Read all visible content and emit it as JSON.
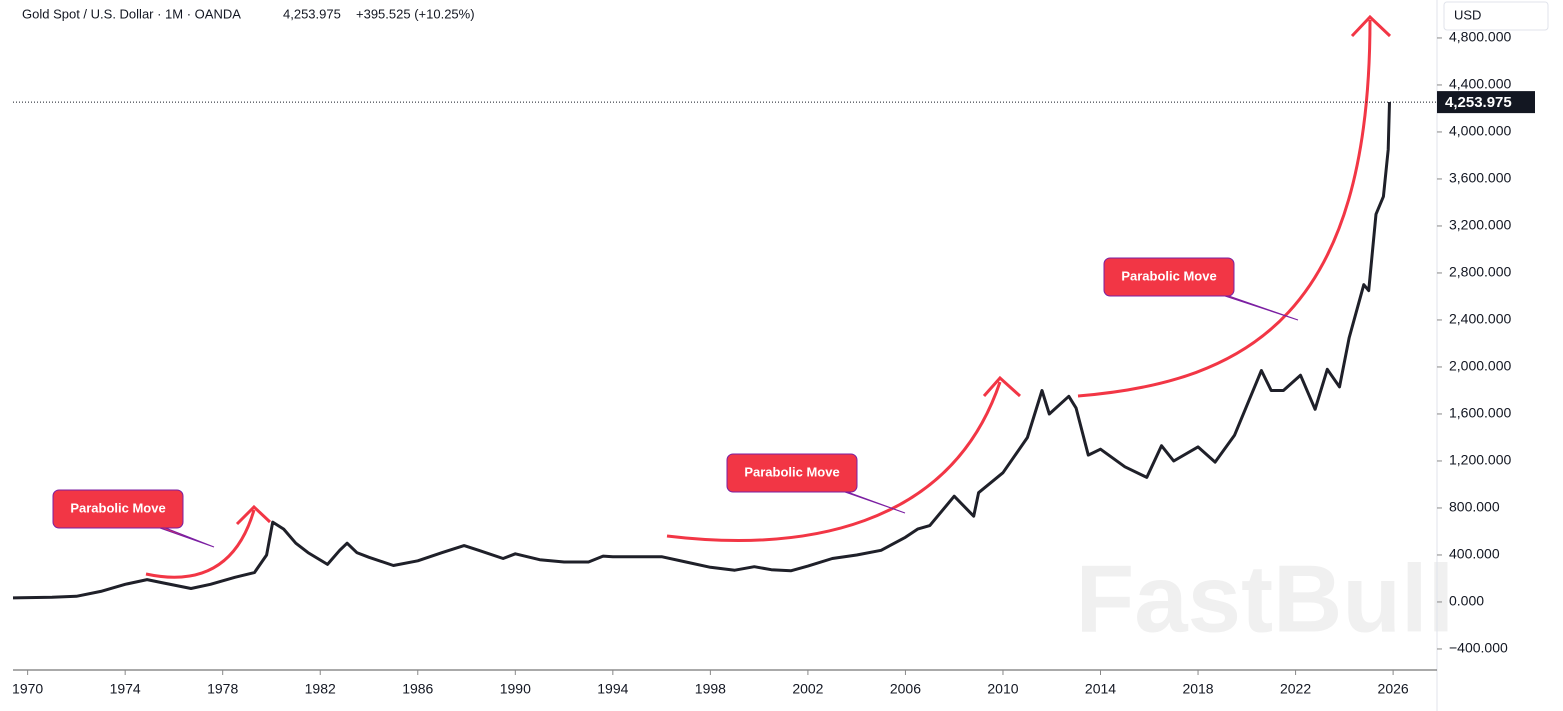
{
  "chart_data": {
    "type": "line",
    "title": "Gold Spot / U.S. Dollar · 1M · OANDA",
    "last_price": {
      "value": 4253.975,
      "label": "4,253.975"
    },
    "change": "+395.525 (+10.25%)",
    "currency": "USD",
    "watermark": "FastBull",
    "annotations": [
      "Parabolic Move",
      "Parabolic Move",
      "Parabolic Move"
    ],
    "xlim": [
      1969.4,
      2027.8
    ],
    "xticks": [
      1970,
      1974,
      1978,
      1982,
      1986,
      1990,
      1994,
      1998,
      2002,
      2006,
      2010,
      2014,
      2018,
      2022,
      2026
    ],
    "ylim": [
      -579,
      5123
    ],
    "yticks": [
      {
        "value": -400,
        "label": "−400.000"
      },
      {
        "value": 0,
        "label": "0.000"
      },
      {
        "value": 400,
        "label": "400.000"
      },
      {
        "value": 800,
        "label": "800.000"
      },
      {
        "value": 1200,
        "label": "1,200.000"
      },
      {
        "value": 1600,
        "label": "1,600.000"
      },
      {
        "value": 2000,
        "label": "2,000.000"
      },
      {
        "value": 2400,
        "label": "2,400.000"
      },
      {
        "value": 2800,
        "label": "2,800.000"
      },
      {
        "value": 3200,
        "label": "3,200.000"
      },
      {
        "value": 3600,
        "label": "3,600.000"
      },
      {
        "value": 4000,
        "label": "4,000.000"
      },
      {
        "value": 4400,
        "label": "4,400.000"
      },
      {
        "value": 4800,
        "label": "4,800.000"
      }
    ],
    "series": [
      {
        "color": "#1f2029",
        "x": [
          1969.4,
          1971,
          1972,
          1973,
          1974,
          1974.9,
          1975.5,
          1976.7,
          1977.5,
          1978.5,
          1979.3,
          1979.8,
          1980.05,
          1980.5,
          1981,
          1981.5,
          1982.3,
          1982.8,
          1983.1,
          1983.5,
          1984,
          1985,
          1986,
          1987,
          1987.9,
          1988.5,
          1989.5,
          1990,
          1991,
          1992,
          1993,
          1993.6,
          1994,
          1995,
          1996,
          1997,
          1998,
          1999,
          1999.8,
          2000.5,
          2001.3,
          2002,
          2003,
          2004,
          2005,
          2006,
          2006.5,
          2007,
          2008,
          2008.8,
          2009,
          2010,
          2011,
          2011.6,
          2011.9,
          2012.7,
          2013,
          2013.5,
          2014,
          2015,
          2015.9,
          2016.5,
          2017,
          2018,
          2018.7,
          2019.5,
          2020.6,
          2021,
          2021.5,
          2022.2,
          2022.8,
          2023.3,
          2023.8,
          2024.2,
          2024.8,
          2025,
          2025.3,
          2025.6,
          2025.8,
          2025.85
        ],
        "values": [
          35,
          40,
          48,
          90,
          150,
          190,
          165,
          115,
          150,
          210,
          250,
          400,
          680,
          620,
          500,
          420,
          320,
          440,
          500,
          420,
          380,
          310,
          350,
          420,
          480,
          440,
          370,
          410,
          360,
          340,
          340,
          390,
          385,
          385,
          385,
          340,
          295,
          270,
          300,
          275,
          265,
          305,
          370,
          400,
          440,
          550,
          620,
          650,
          900,
          730,
          930,
          1100,
          1400,
          1800,
          1600,
          1750,
          1650,
          1250,
          1300,
          1150,
          1060,
          1330,
          1200,
          1320,
          1190,
          1420,
          1970,
          1800,
          1800,
          1930,
          1640,
          1980,
          1830,
          2250,
          2700,
          2650,
          3300,
          3450,
          3850,
          4253.975
        ]
      }
    ]
  }
}
